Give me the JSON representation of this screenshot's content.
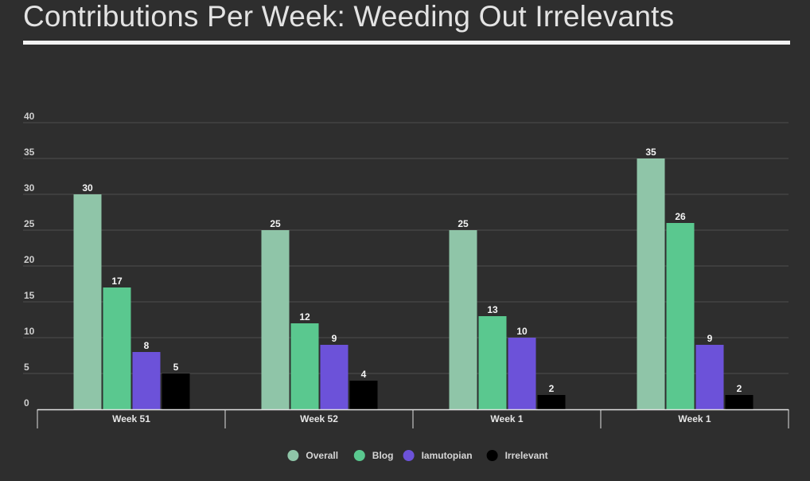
{
  "chart_data": {
    "type": "bar",
    "title": "Contributions Per Week: Weeding Out Irrelevants",
    "xlabel": "",
    "ylabel": "",
    "categories": [
      "Week 51",
      "Week 52",
      "Week 1",
      "Week 1"
    ],
    "ylim": [
      0,
      40
    ],
    "yticks": [
      0,
      5,
      10,
      15,
      20,
      25,
      30,
      35,
      40
    ],
    "grid": true,
    "legend_position": "bottom",
    "series": [
      {
        "name": "Overall",
        "color": "#8fc5a8",
        "values": [
          30,
          25,
          25,
          35
        ]
      },
      {
        "name": "Blog",
        "color": "#5ac88f",
        "values": [
          17,
          12,
          13,
          26
        ]
      },
      {
        "name": "Iamutopian",
        "color": "#6c52d9",
        "values": [
          8,
          9,
          10,
          9
        ]
      },
      {
        "name": "Irrelevant",
        "color": "#000000",
        "values": [
          5,
          4,
          2,
          2
        ]
      }
    ]
  }
}
